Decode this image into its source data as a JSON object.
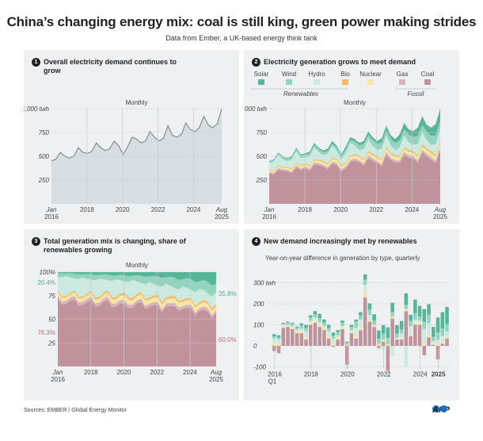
{
  "header": {
    "title": "China’s changing energy mix: coal is still king, green power making strides",
    "subtitle": "Data from Ember, a UK-based energy think tank"
  },
  "footer": {
    "source": "Sources: EMBER / Global Energy Monitor",
    "logo": "AFP"
  },
  "colors": {
    "coal": "#c0929b",
    "gas": "#d7b3b9",
    "nuclear": "#f6e7a6",
    "bio": "#f2b866",
    "hydro": "#cdeae1",
    "wind": "#93d3bf",
    "solar": "#56b596",
    "demand_fill": "#d6dee3",
    "demand_line": "#7d918a"
  },
  "chart_data": [
    {
      "panel": "1",
      "type": "area",
      "title": "Overall electricity demand continues to grow",
      "subtitle": "Monthly",
      "yunit": "twh",
      "ylim": [
        0,
        1000
      ],
      "yticks": [
        "250",
        "500",
        "750",
        "1,000 twh"
      ],
      "xticks": [
        {
          "label": "Jan",
          "label2": "2016",
          "m": 0
        },
        {
          "label": "2018",
          "m": 24
        },
        {
          "label": "2020",
          "m": 48
        },
        {
          "label": "2022",
          "m": 72
        },
        {
          "label": "2024",
          "m": 96
        },
        {
          "label": "Aug",
          "label2": "2025",
          "m": 115
        }
      ],
      "x": [
        "2016Q1",
        "2016Q2",
        "2016Q3",
        "2016Q4",
        "2017Q1",
        "2017Q2",
        "2017Q3",
        "2017Q4",
        "2018Q1",
        "2018Q2",
        "2018Q3",
        "2018Q4",
        "2019Q1",
        "2019Q2",
        "2019Q3",
        "2019Q4",
        "2020Q1",
        "2020Q2",
        "2020Q3",
        "2020Q4",
        "2021Q1",
        "2021Q2",
        "2021Q3",
        "2021Q4",
        "2022Q1",
        "2022Q2",
        "2022Q3",
        "2022Q4",
        "2023Q1",
        "2023Q2",
        "2023Q3",
        "2023Q4",
        "2024Q1",
        "2024Q2",
        "2024Q3",
        "2024Q4",
        "2025Q1",
        "2025Q2",
        "2025Q3"
      ],
      "values": [
        450,
        470,
        540,
        500,
        480,
        500,
        590,
        540,
        530,
        550,
        640,
        590,
        560,
        580,
        660,
        610,
        520,
        600,
        700,
        680,
        640,
        660,
        760,
        700,
        660,
        690,
        820,
        720,
        700,
        730,
        850,
        780,
        760,
        800,
        920,
        830,
        800,
        840,
        1000
      ]
    },
    {
      "panel": "2",
      "type": "area",
      "stacked": true,
      "title": "Electricity generation grows to meet demand",
      "subtitle": "Monthly",
      "ylim": [
        0,
        1000
      ],
      "yticks": [
        "250",
        "500",
        "750",
        "1,000 twh"
      ],
      "legend": [
        {
          "name": "Solar",
          "key": "solar"
        },
        {
          "name": "Wind",
          "key": "wind"
        },
        {
          "name": "Hydro",
          "key": "hydro"
        },
        {
          "name": "Bio",
          "key": "bio"
        },
        {
          "name": "Nuclear",
          "key": "nuclear"
        },
        {
          "name": "Gas",
          "key": "gas"
        },
        {
          "name": "Coal",
          "key": "coal"
        }
      ],
      "groups": {
        "renewables": "Renewables",
        "fossil": "Fossil"
      },
      "series": {
        "solar": [
          5,
          7,
          8,
          6,
          8,
          12,
          14,
          10,
          12,
          18,
          20,
          14,
          15,
          22,
          24,
          18,
          18,
          26,
          28,
          22,
          24,
          32,
          35,
          28,
          30,
          42,
          45,
          35,
          40,
          60,
          65,
          50,
          60,
          85,
          90,
          70,
          85,
          120,
          125
        ],
        "wind": [
          20,
          20,
          15,
          22,
          25,
          25,
          20,
          28,
          30,
          30,
          25,
          32,
          32,
          33,
          27,
          35,
          35,
          38,
          30,
          45,
          50,
          55,
          45,
          60,
          65,
          65,
          55,
          70,
          75,
          75,
          65,
          80,
          85,
          85,
          75,
          90,
          95,
          95,
          85
        ],
        "hydro": [
          60,
          95,
          115,
          80,
          60,
          95,
          120,
          80,
          62,
          100,
          125,
          82,
          62,
          100,
          125,
          85,
          60,
          100,
          135,
          90,
          60,
          100,
          125,
          85,
          65,
          115,
          120,
          80,
          55,
          85,
          120,
          85,
          65,
          115,
          130,
          85,
          70,
          110,
          130
        ],
        "bio": [
          8,
          8,
          8,
          9,
          9,
          9,
          10,
          10,
          10,
          11,
          11,
          11,
          12,
          12,
          13,
          13,
          13,
          14,
          14,
          14,
          14,
          15,
          15,
          15,
          15,
          16,
          16,
          16,
          16,
          17,
          17,
          17,
          17,
          18,
          18,
          18,
          18,
          19,
          19
        ],
        "nuclear": [
          17,
          17,
          18,
          18,
          20,
          20,
          21,
          21,
          23,
          23,
          25,
          25,
          27,
          27,
          29,
          29,
          30,
          30,
          32,
          32,
          34,
          34,
          34,
          34,
          35,
          35,
          36,
          36,
          36,
          37,
          38,
          38,
          38,
          39,
          39,
          40,
          40,
          41,
          42
        ],
        "gas": [
          15,
          16,
          18,
          16,
          17,
          18,
          20,
          18,
          18,
          20,
          22,
          20,
          20,
          21,
          23,
          21,
          20,
          22,
          24,
          22,
          22,
          24,
          26,
          24,
          22,
          23,
          25,
          23,
          24,
          25,
          27,
          25,
          25,
          26,
          28,
          26,
          26,
          27,
          29
        ],
        "coal": [
          325,
          307,
          358,
          349,
          341,
          321,
          385,
          353,
          375,
          348,
          412,
          406,
          392,
          365,
          419,
          409,
          344,
          370,
          437,
          455,
          436,
          400,
          480,
          454,
          428,
          394,
          523,
          460,
          434,
          431,
          518,
          485,
          475,
          432,
          540,
          501,
          466,
          428,
          570
        ]
      }
    },
    {
      "panel": "3",
      "type": "area",
      "stacked": true,
      "percent": true,
      "title": "Total generation mix is changing, share of renewables growing",
      "subtitle": "Monthly",
      "ylim": [
        0,
        100
      ],
      "yticks": [
        "25",
        "50",
        "75",
        "100%"
      ],
      "annotations": {
        "renewables_start": "20.4%",
        "fossil_start": "76.3%",
        "renewables_end": "35.8%",
        "fossil_end": "60.0%"
      }
    },
    {
      "panel": "4",
      "type": "bar",
      "stacked": true,
      "title": "New demand increasingly met by renewables",
      "subtitle": "Year-on-year difference in generation by type, quarterly",
      "ylim": [
        -100,
        340
      ],
      "yticks": [
        {
          "v": -100,
          "l": "-100"
        },
        {
          "v": 0,
          "l": "0"
        },
        {
          "v": 100,
          "l": "100"
        },
        {
          "v": 200,
          "l": "200"
        },
        {
          "v": 300,
          "l": "300 twh"
        }
      ],
      "xticks": [
        {
          "label": "2016",
          "label2": "Q1",
          "i": 0
        },
        {
          "label": "2018",
          "i": 8
        },
        {
          "label": "2020",
          "i": 16
        },
        {
          "label": "2022",
          "i": 24
        },
        {
          "label": "2024",
          "i": 32
        },
        {
          "label": "2025",
          "i": 36,
          "bold": true
        }
      ],
      "series": {
        "coal": [
          -25,
          -35,
          85,
          90,
          80,
          60,
          60,
          30,
          100,
          110,
          90,
          75,
          35,
          -5,
          30,
          80,
          -90,
          60,
          35,
          75,
          230,
          115,
          90,
          -10,
          20,
          -120,
          130,
          30,
          30,
          165,
          45,
          100,
          100,
          -45,
          40,
          5,
          -65,
          10,
          35
        ],
        "nuclear": [
          10,
          10,
          10,
          10,
          10,
          12,
          12,
          10,
          10,
          10,
          12,
          10,
          10,
          8,
          10,
          10,
          5,
          10,
          10,
          10,
          25,
          12,
          10,
          8,
          8,
          8,
          10,
          8,
          8,
          10,
          8,
          10,
          10,
          10,
          8,
          8,
          8,
          8,
          8
        ],
        "hydro": [
          25,
          20,
          5,
          0,
          5,
          5,
          10,
          30,
          10,
          15,
          10,
          10,
          25,
          25,
          10,
          5,
          -20,
          5,
          40,
          40,
          35,
          20,
          0,
          -10,
          -20,
          -30,
          -50,
          0,
          20,
          -100,
          40,
          15,
          10,
          70,
          60,
          10,
          20,
          30,
          25
        ],
        "wind": [
          10,
          10,
          5,
          10,
          10,
          10,
          15,
          15,
          15,
          15,
          20,
          15,
          15,
          15,
          15,
          15,
          10,
          15,
          30,
          20,
          25,
          25,
          20,
          25,
          30,
          30,
          20,
          20,
          20,
          20,
          25,
          30,
          20,
          35,
          40,
          20,
          35,
          35,
          35
        ],
        "solar": [
          10,
          10,
          5,
          5,
          5,
          5,
          10,
          15,
          10,
          15,
          20,
          15,
          15,
          15,
          10,
          10,
          5,
          10,
          10,
          15,
          25,
          30,
          30,
          40,
          40,
          50,
          45,
          40,
          40,
          55,
          30,
          65,
          50,
          60,
          50,
          47,
          72,
          77,
          82
        ]
      }
    }
  ]
}
